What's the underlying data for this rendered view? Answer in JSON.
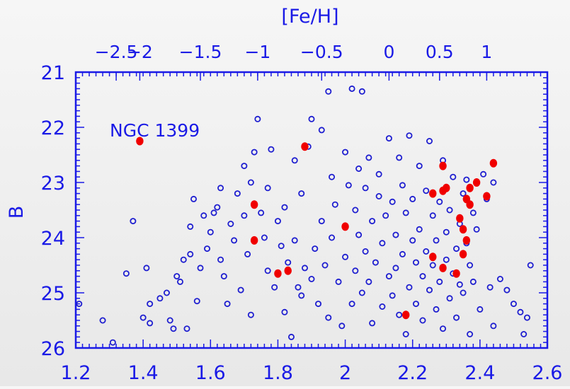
{
  "colors": {
    "axis": "#1a1ae6",
    "open_marker": "#1f1fd0",
    "filled_marker": "#f00000"
  },
  "chart_data": {
    "type": "scatter",
    "title": "",
    "xlabel": "",
    "ylabel": "B",
    "top_axis_label": "[Fe/H]",
    "annotation": "NGC 1399",
    "xlim": [
      1.2,
      2.6
    ],
    "ylim": [
      26,
      21
    ],
    "y_inverted": true,
    "x_ticks": [
      "1.2",
      "1.4",
      "1.6",
      "1.8",
      "2",
      "2.2",
      "2.4",
      "2.6"
    ],
    "x_tick_values": [
      1.2,
      1.4,
      1.6,
      1.8,
      2.0,
      2.2,
      2.4,
      2.6
    ],
    "y_ticks": [
      "21",
      "22",
      "23",
      "24",
      "25",
      "26"
    ],
    "y_tick_values": [
      21,
      22,
      23,
      24,
      25,
      26
    ],
    "top_ticks": [
      "−2.5",
      "−2",
      "−1.5",
      "−1",
      "−0.5",
      "0",
      "0.5",
      "1"
    ],
    "top_tick_x_values": [
      1.32,
      1.39,
      1.57,
      1.74,
      1.93,
      2.13,
      2.28,
      2.42
    ],
    "grid": false,
    "series": [
      {
        "marker": "open-circle",
        "points": [
          [
            1.21,
            25.2
          ],
          [
            1.28,
            25.5
          ],
          [
            1.31,
            25.9
          ],
          [
            1.35,
            24.65
          ],
          [
            1.37,
            23.7
          ],
          [
            1.4,
            25.45
          ],
          [
            1.41,
            24.55
          ],
          [
            1.42,
            25.2
          ],
          [
            1.42,
            25.55
          ],
          [
            1.45,
            25.1
          ],
          [
            1.47,
            25.0
          ],
          [
            1.48,
            25.5
          ],
          [
            1.49,
            25.65
          ],
          [
            1.5,
            24.7
          ],
          [
            1.51,
            24.8
          ],
          [
            1.52,
            24.4
          ],
          [
            1.53,
            25.65
          ],
          [
            1.54,
            24.3
          ],
          [
            1.54,
            23.8
          ],
          [
            1.55,
            23.3
          ],
          [
            1.56,
            25.15
          ],
          [
            1.57,
            24.55
          ],
          [
            1.58,
            23.6
          ],
          [
            1.59,
            24.2
          ],
          [
            1.6,
            23.9
          ],
          [
            1.61,
            23.55
          ],
          [
            1.62,
            23.45
          ],
          [
            1.63,
            23.1
          ],
          [
            1.63,
            24.4
          ],
          [
            1.64,
            24.7
          ],
          [
            1.65,
            25.2
          ],
          [
            1.66,
            23.75
          ],
          [
            1.67,
            24.05
          ],
          [
            1.68,
            23.2
          ],
          [
            1.69,
            24.95
          ],
          [
            1.7,
            23.6
          ],
          [
            1.7,
            22.7
          ],
          [
            1.71,
            24.3
          ],
          [
            1.72,
            23.0
          ],
          [
            1.72,
            25.4
          ],
          [
            1.73,
            22.45
          ],
          [
            1.74,
            21.85
          ],
          [
            1.75,
            23.55
          ],
          [
            1.76,
            24.0
          ],
          [
            1.77,
            24.6
          ],
          [
            1.77,
            23.1
          ],
          [
            1.78,
            22.4
          ],
          [
            1.79,
            24.9
          ],
          [
            1.8,
            23.7
          ],
          [
            1.81,
            24.15
          ],
          [
            1.82,
            25.35
          ],
          [
            1.82,
            23.45
          ],
          [
            1.83,
            24.45
          ],
          [
            1.84,
            25.8
          ],
          [
            1.85,
            24.05
          ],
          [
            1.85,
            22.6
          ],
          [
            1.86,
            24.9
          ],
          [
            1.87,
            23.2
          ],
          [
            1.87,
            25.05
          ],
          [
            1.88,
            24.55
          ],
          [
            1.89,
            22.35
          ],
          [
            1.9,
            24.75
          ],
          [
            1.9,
            21.85
          ],
          [
            1.91,
            24.2
          ],
          [
            1.92,
            25.2
          ],
          [
            1.93,
            23.7
          ],
          [
            1.93,
            22.05
          ],
          [
            1.94,
            24.5
          ],
          [
            1.95,
            21.35
          ],
          [
            1.95,
            25.45
          ],
          [
            1.96,
            24.0
          ],
          [
            1.96,
            22.9
          ],
          [
            1.97,
            23.4
          ],
          [
            1.98,
            24.8
          ],
          [
            1.99,
            25.6
          ],
          [
            2.0,
            22.45
          ],
          [
            2.0,
            24.35
          ],
          [
            2.01,
            23.05
          ],
          [
            2.02,
            25.2
          ],
          [
            2.02,
            21.3
          ],
          [
            2.03,
            24.6
          ],
          [
            2.03,
            23.5
          ],
          [
            2.04,
            23.95
          ],
          [
            2.04,
            22.75
          ],
          [
            2.05,
            25.0
          ],
          [
            2.05,
            21.35
          ],
          [
            2.06,
            24.25
          ],
          [
            2.06,
            23.1
          ],
          [
            2.07,
            24.8
          ],
          [
            2.07,
            22.55
          ],
          [
            2.08,
            23.7
          ],
          [
            2.08,
            25.55
          ],
          [
            2.09,
            24.45
          ],
          [
            2.1,
            23.25
          ],
          [
            2.1,
            22.85
          ],
          [
            2.11,
            24.1
          ],
          [
            2.11,
            25.25
          ],
          [
            2.12,
            23.6
          ],
          [
            2.13,
            24.7
          ],
          [
            2.13,
            22.2
          ],
          [
            2.14,
            25.05
          ],
          [
            2.14,
            23.35
          ],
          [
            2.15,
            23.95
          ],
          [
            2.15,
            24.55
          ],
          [
            2.16,
            22.55
          ],
          [
            2.16,
            25.4
          ],
          [
            2.17,
            23.05
          ],
          [
            2.17,
            24.3
          ],
          [
            2.18,
            25.75
          ],
          [
            2.18,
            23.55
          ],
          [
            2.19,
            24.9
          ],
          [
            2.19,
            22.15
          ],
          [
            2.2,
            24.05
          ],
          [
            2.2,
            23.3
          ],
          [
            2.21,
            25.2
          ],
          [
            2.21,
            24.45
          ],
          [
            2.22,
            22.7
          ],
          [
            2.22,
            23.85
          ],
          [
            2.23,
            24.7
          ],
          [
            2.23,
            25.5
          ],
          [
            2.24,
            23.15
          ],
          [
            2.24,
            24.25
          ],
          [
            2.25,
            24.95
          ],
          [
            2.25,
            22.25
          ],
          [
            2.26,
            23.6
          ],
          [
            2.26,
            24.5
          ],
          [
            2.27,
            25.3
          ],
          [
            2.27,
            24.05
          ],
          [
            2.28,
            23.35
          ],
          [
            2.28,
            24.8
          ],
          [
            2.29,
            25.65
          ],
          [
            2.29,
            22.6
          ],
          [
            2.3,
            23.9
          ],
          [
            2.3,
            24.4
          ],
          [
            2.31,
            25.1
          ],
          [
            2.31,
            23.5
          ],
          [
            2.32,
            24.65
          ],
          [
            2.32,
            22.9
          ],
          [
            2.33,
            24.2
          ],
          [
            2.33,
            25.45
          ],
          [
            2.34,
            23.75
          ],
          [
            2.34,
            24.85
          ],
          [
            2.35,
            23.2
          ],
          [
            2.35,
            25.0
          ],
          [
            2.36,
            24.1
          ],
          [
            2.36,
            22.95
          ],
          [
            2.37,
            24.5
          ],
          [
            2.37,
            25.75
          ],
          [
            2.38,
            23.55
          ],
          [
            2.38,
            24.8
          ],
          [
            2.39,
            23.85
          ],
          [
            2.4,
            25.3
          ],
          [
            2.41,
            22.85
          ],
          [
            2.42,
            23.3
          ],
          [
            2.43,
            24.9
          ],
          [
            2.44,
            23.0
          ],
          [
            2.44,
            25.6
          ],
          [
            2.46,
            24.75
          ],
          [
            2.48,
            24.95
          ],
          [
            2.5,
            25.2
          ],
          [
            2.52,
            25.35
          ],
          [
            2.53,
            25.75
          ],
          [
            2.54,
            25.45
          ],
          [
            2.55,
            24.5
          ]
        ]
      },
      {
        "marker": "filled-circle",
        "points": [
          [
            1.39,
            22.25
          ],
          [
            1.73,
            23.4
          ],
          [
            1.73,
            24.05
          ],
          [
            1.8,
            24.65
          ],
          [
            1.83,
            24.6
          ],
          [
            1.88,
            22.35
          ],
          [
            2.0,
            23.8
          ],
          [
            2.18,
            25.4
          ],
          [
            2.26,
            23.2
          ],
          [
            2.26,
            24.35
          ],
          [
            2.29,
            22.7
          ],
          [
            2.29,
            23.15
          ],
          [
            2.29,
            24.55
          ],
          [
            2.3,
            23.1
          ],
          [
            2.33,
            24.65
          ],
          [
            2.34,
            23.65
          ],
          [
            2.35,
            23.85
          ],
          [
            2.35,
            24.3
          ],
          [
            2.36,
            23.3
          ],
          [
            2.36,
            24.05
          ],
          [
            2.37,
            23.1
          ],
          [
            2.37,
            23.4
          ],
          [
            2.39,
            23.0
          ],
          [
            2.42,
            23.25
          ],
          [
            2.44,
            22.65
          ]
        ]
      }
    ]
  }
}
